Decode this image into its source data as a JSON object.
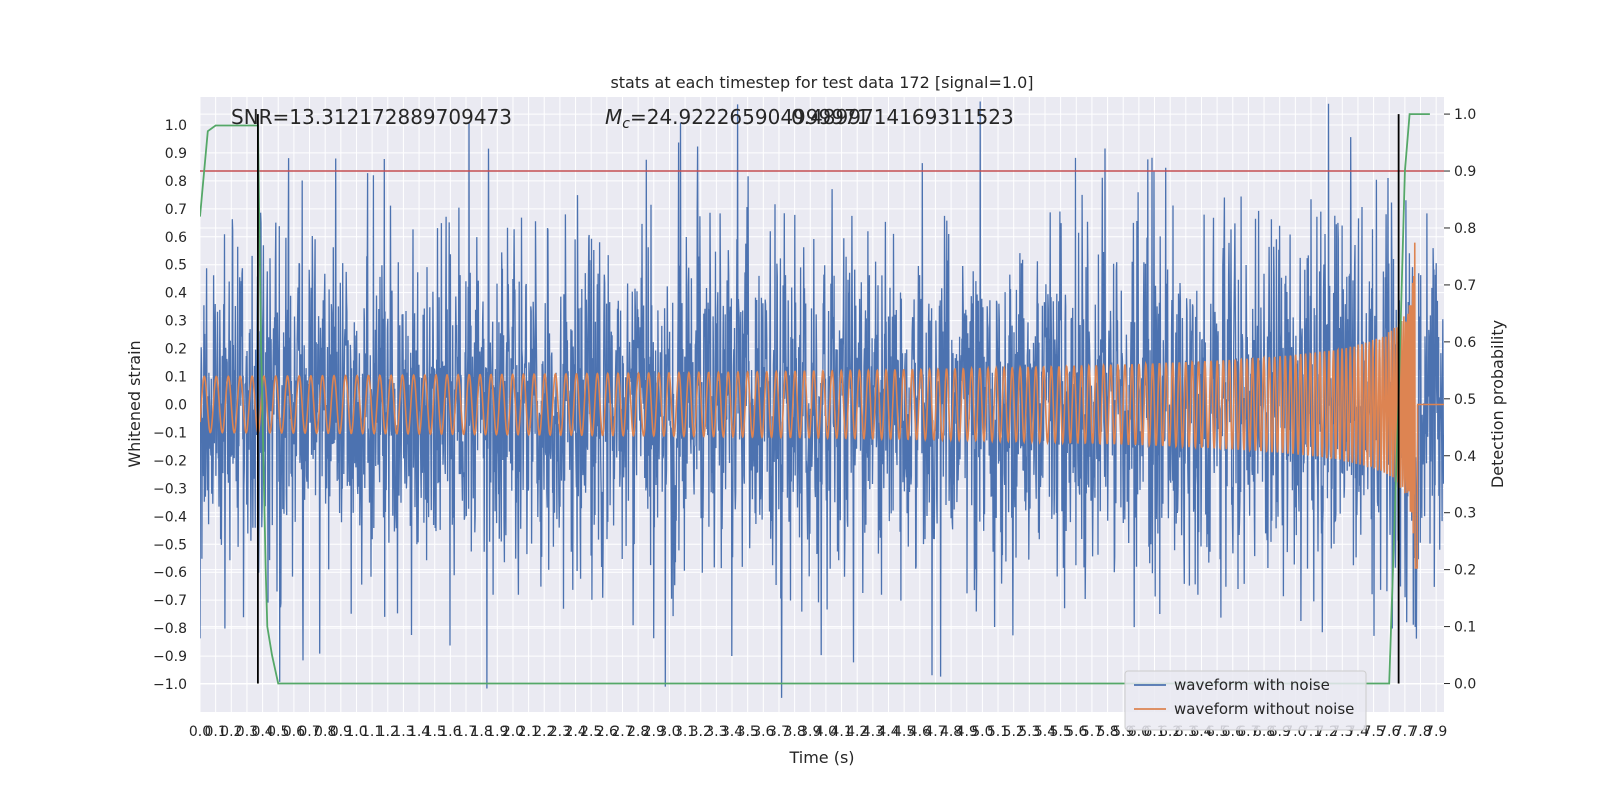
{
  "chart_data": {
    "type": "line",
    "title": "stats at each timestep for test data 172 [signal=1.0]",
    "xlabel": "Time (s)",
    "ylabel": "Whitened strain",
    "y2label": "Detection probability",
    "xlim": [
      0.0,
      7.95
    ],
    "ylim": [
      -1.1,
      1.1
    ],
    "y2lim": [
      -0.05,
      1.03
    ],
    "x_ticks": [
      "0.0",
      "0.1",
      "0.2",
      "0.3",
      "0.4",
      "0.5",
      "0.6",
      "0.7",
      "0.8",
      "0.9",
      "1.0",
      "1.1",
      "1.2",
      "1.3",
      "1.4",
      "1.5",
      "1.6",
      "1.7",
      "1.8",
      "1.9",
      "2.0",
      "2.1",
      "2.2",
      "2.3",
      "2.4",
      "2.5",
      "2.6",
      "2.7",
      "2.8",
      "2.9",
      "3.0",
      "3.1",
      "3.2",
      "3.3",
      "3.4",
      "3.5",
      "3.6",
      "3.7",
      "3.8",
      "3.9",
      "4.0",
      "4.1",
      "4.2",
      "4.3",
      "4.4",
      "4.5",
      "4.6",
      "4.7",
      "4.8",
      "4.9",
      "5.0",
      "5.1",
      "5.2",
      "5.3",
      "5.4",
      "5.5",
      "5.6",
      "5.7",
      "5.8",
      "5.9",
      "6.0",
      "6.1",
      "6.2",
      "6.3",
      "6.4",
      "6.5",
      "6.6",
      "6.7",
      "6.8",
      "6.9",
      "7.0",
      "7.1",
      "7.2",
      "7.3",
      "7.4",
      "7.5",
      "7.6",
      "7.7",
      "7.8",
      "7.9"
    ],
    "y_ticks": [
      "1.0",
      "0.9",
      "0.8",
      "0.7",
      "0.6",
      "0.5",
      "0.4",
      "0.3",
      "0.2",
      "0.1",
      "0.0",
      "−0.1",
      "−0.2",
      "−0.3",
      "−0.4",
      "−0.5",
      "−0.6",
      "−0.7",
      "−0.8",
      "−0.9",
      "−1.0"
    ],
    "y2_ticks": [
      "1.0",
      "0.9",
      "0.8",
      "0.7",
      "0.6",
      "0.5",
      "0.4",
      "0.3",
      "0.2",
      "0.1",
      "0.0"
    ],
    "grid": true,
    "legend_position": "bottom-right",
    "annotations": {
      "snr_text": "SNR=13.312172889709473",
      "mc_text_prefix": "M",
      "mc_text_sub": "c",
      "mc_text_value": "=24.922265904999971",
      "mc_text_overlap": "0.4899714169311523"
    },
    "series": [
      {
        "name": "waveform with noise",
        "color": "#4c72b0",
        "noise_amplitude": 0.3,
        "peak_min": -0.94,
        "peak_max": 0.96
      },
      {
        "name": "waveform without noise",
        "color": "#dd8452",
        "merger_time": 7.77,
        "peak_amplitude": 0.7
      },
      {
        "color": "#55a868",
        "points": [
          [
            0.0,
            0.82
          ],
          [
            0.05,
            0.97
          ],
          [
            0.1,
            0.98
          ],
          [
            0.3,
            0.98
          ],
          [
            0.37,
            0.98
          ],
          [
            0.39,
            0.6
          ],
          [
            0.42,
            0.2
          ],
          [
            0.43,
            0.1
          ],
          [
            0.46,
            0.05
          ],
          [
            0.5,
            0.0
          ],
          [
            7.6,
            0.0
          ],
          [
            7.66,
            0.5
          ],
          [
            7.7,
            0.9
          ],
          [
            7.73,
            1.0
          ],
          [
            7.86,
            1.0
          ]
        ]
      }
    ],
    "threshold_line": {
      "value": 0.9,
      "axis": "detection_probability",
      "color": "#c44e52"
    },
    "vertical_lines": [
      0.37,
      7.66
    ]
  }
}
